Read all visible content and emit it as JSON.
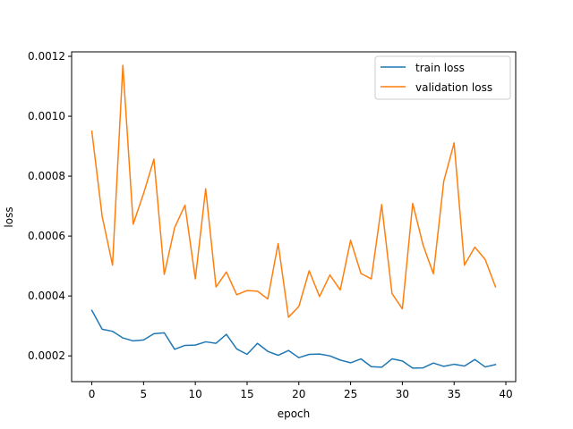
{
  "chart_data": {
    "type": "line",
    "title": "",
    "xlabel": "epoch",
    "ylabel": "loss",
    "xlim": [
      -1.95,
      40.95
    ],
    "ylim": [
      0.000114,
      0.001215
    ],
    "grid": false,
    "legend_position": "top-right",
    "x": [
      0,
      1,
      2,
      3,
      4,
      5,
      6,
      7,
      8,
      9,
      10,
      11,
      12,
      13,
      14,
      15,
      16,
      17,
      18,
      19,
      20,
      21,
      22,
      23,
      24,
      25,
      26,
      27,
      28,
      29,
      30,
      31,
      32,
      33,
      34,
      35,
      36,
      37,
      38,
      39
    ],
    "x_ticks": [
      0,
      5,
      10,
      15,
      20,
      25,
      30,
      35,
      40
    ],
    "x_tick_labels": [
      "0",
      "5",
      "10",
      "15",
      "20",
      "25",
      "30",
      "35",
      "40"
    ],
    "y_ticks": [
      0.0002,
      0.0004,
      0.0006,
      0.0008,
      0.001,
      0.0012
    ],
    "y_tick_labels": [
      "0.0002",
      "0.0004",
      "0.0006",
      "0.0008",
      "0.0010",
      "0.0012"
    ],
    "series": [
      {
        "name": "train loss",
        "color": "#1f77b4",
        "values": [
          0.000352,
          0.000289,
          0.000282,
          0.00026,
          0.00025,
          0.000253,
          0.000274,
          0.000277,
          0.000222,
          0.000235,
          0.000236,
          0.000247,
          0.000242,
          0.000272,
          0.000223,
          0.000205,
          0.000242,
          0.000215,
          0.000202,
          0.000218,
          0.000194,
          0.000205,
          0.000206,
          0.0002,
          0.000186,
          0.000177,
          0.00019,
          0.000164,
          0.000162,
          0.00019,
          0.000183,
          0.000159,
          0.00016,
          0.000176,
          0.000165,
          0.000172,
          0.000166,
          0.000188,
          0.000163,
          0.000171
        ]
      },
      {
        "name": "validation loss",
        "color": "#ff7f0e",
        "values": [
          0.00095,
          0.000666,
          0.000503,
          0.00117,
          0.00064,
          0.000742,
          0.000857,
          0.000472,
          0.000628,
          0.000703,
          0.000457,
          0.000758,
          0.00043,
          0.00048,
          0.000404,
          0.000418,
          0.000416,
          0.00039,
          0.000575,
          0.000329,
          0.000365,
          0.000484,
          0.000398,
          0.00047,
          0.00042,
          0.000586,
          0.000475,
          0.000457,
          0.000705,
          0.000408,
          0.000357,
          0.000709,
          0.00057,
          0.000474,
          0.000783,
          0.000911,
          0.000503,
          0.000563,
          0.000522,
          0.00043
        ]
      }
    ]
  }
}
